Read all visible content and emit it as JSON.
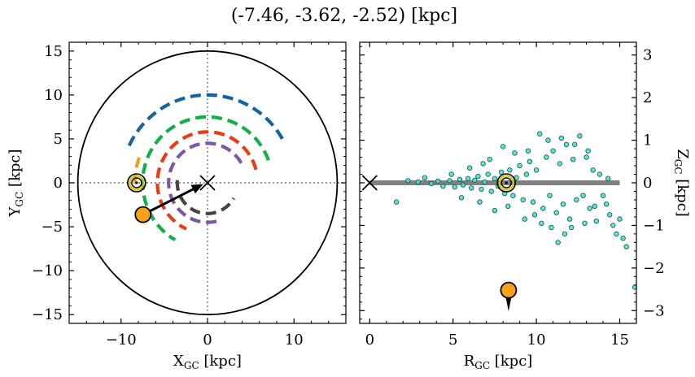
{
  "figure": {
    "title": "(-7.46, -3.62, -2.52) [kpc]"
  },
  "chart_data": [
    {
      "type": "line",
      "panel": "left",
      "xlabel_main": "X",
      "xlabel_sub": "GC",
      "xlabel_unit": " [kpc]",
      "ylabel_main": "Y",
      "ylabel_sub": "GC",
      "ylabel_unit": " [kpc]",
      "xlim": [
        -16,
        16
      ],
      "ylim": [
        -16,
        16
      ],
      "xticks": [
        -10,
        0,
        10
      ],
      "xtick_labels": [
        "−10",
        "0",
        "10"
      ],
      "yticks": [
        -15,
        -10,
        -5,
        0,
        5,
        10,
        15
      ],
      "ytick_labels": [
        "−15",
        "−10",
        "−5",
        "0",
        "5",
        "10",
        "15"
      ],
      "boundary_circle_radius": 15,
      "galactic_center": [
        0,
        0
      ],
      "sun_position": [
        -8.2,
        0
      ],
      "object_position": [
        -7.46,
        -3.62
      ],
      "spiral_arms": [
        {
          "color": "#1464a0",
          "radius": 10,
          "theta_start_deg": 30,
          "theta_end_deg": 155
        },
        {
          "color": "#10b047",
          "radius": 7.5,
          "theta_start_deg": 20,
          "theta_end_deg": 240
        },
        {
          "color": "#f0a020",
          "radius": 8.4,
          "theta_start_deg": 160,
          "theta_end_deg": 183
        },
        {
          "color": "#ee3a10",
          "radius": 5.8,
          "theta_start_deg": 15,
          "theta_end_deg": 245
        },
        {
          "color": "#7e57a4",
          "radius": 4.5,
          "theta_start_deg": 30,
          "theta_end_deg": 285
        },
        {
          "color": "#454545",
          "radius": 3.5,
          "theta_start_deg": 175,
          "theta_end_deg": 330
        }
      ]
    },
    {
      "type": "scatter",
      "panel": "right",
      "xlabel_main": "R",
      "xlabel_sub": "GC",
      "xlabel_unit": " [kpc]",
      "ylabel_main": "Z",
      "ylabel_sub": "GC",
      "ylabel_unit": " [kpc]",
      "xlim": [
        -0.6,
        16
      ],
      "ylim": [
        -3.3,
        3.3
      ],
      "xticks": [
        0,
        5,
        10,
        15
      ],
      "xtick_labels": [
        "0",
        "5",
        "10",
        "15"
      ],
      "yticks": [
        -3,
        -2,
        -1,
        0,
        1,
        2,
        3
      ],
      "ytick_labels": [
        "−3",
        "−2",
        "−1",
        "0",
        "1",
        "2",
        "3"
      ],
      "disk_plane": {
        "x_range": [
          0,
          15
        ],
        "z": 0
      },
      "galactic_center": [
        0,
        0
      ],
      "sun_position": [
        8.2,
        0
      ],
      "object_position": [
        8.33,
        -2.52
      ],
      "scatter_points": [
        [
          1.6,
          -0.45
        ],
        [
          2.3,
          0.05
        ],
        [
          2.9,
          0.02
        ],
        [
          3.3,
          0.12
        ],
        [
          3.7,
          -0.02
        ],
        [
          4.1,
          0.04
        ],
        [
          4.4,
          -0.08
        ],
        [
          4.8,
          0.05
        ],
        [
          5.1,
          -0.1
        ],
        [
          5.4,
          0.08
        ],
        [
          5.6,
          -0.05
        ],
        [
          5.9,
          0.1
        ],
        [
          6.1,
          -0.12
        ],
        [
          6.3,
          0.06
        ],
        [
          6.5,
          0.15
        ],
        [
          6.7,
          -0.15
        ],
        [
          6.9,
          0.02
        ],
        [
          7.1,
          0.2
        ],
        [
          7.3,
          -0.2
        ],
        [
          7.5,
          0.1
        ],
        [
          7.7,
          -0.08
        ],
        [
          7.9,
          0.25
        ],
        [
          8.1,
          -0.25
        ],
        [
          8.4,
          0.3
        ],
        [
          8.6,
          -0.3
        ],
        [
          8.8,
          0.12
        ],
        [
          9.0,
          0.4
        ],
        [
          9.2,
          -0.4
        ],
        [
          9.4,
          0.2
        ],
        [
          9.6,
          0.5
        ],
        [
          9.8,
          -0.45
        ],
        [
          10.0,
          0.3
        ],
        [
          10.2,
          1.15
        ],
        [
          10.4,
          -0.6
        ],
        [
          10.6,
          0.6
        ],
        [
          10.8,
          -0.3
        ],
        [
          11.0,
          0.75
        ],
        [
          11.2,
          -0.7
        ],
        [
          11.4,
          0.45
        ],
        [
          11.6,
          -0.5
        ],
        [
          11.8,
          0.9
        ],
        [
          12.0,
          -0.85
        ],
        [
          12.2,
          0.55
        ],
        [
          12.4,
          -0.4
        ],
        [
          12.6,
          1.1
        ],
        [
          12.8,
          -0.3
        ],
        [
          13.0,
          0.6
        ],
        [
          13.2,
          -0.6
        ],
        [
          13.4,
          0.3
        ],
        [
          13.6,
          -0.9
        ],
        [
          13.8,
          0.2
        ],
        [
          14.0,
          -0.3
        ],
        [
          14.2,
          -0.5
        ],
        [
          14.4,
          -0.75
        ],
        [
          14.6,
          -1.0
        ],
        [
          14.8,
          -1.2
        ],
        [
          15.0,
          -0.85
        ],
        [
          15.2,
          -1.3
        ],
        [
          15.4,
          -1.5
        ],
        [
          15.9,
          -2.45
        ],
        [
          8.0,
          0.85
        ],
        [
          8.7,
          0.7
        ],
        [
          9.5,
          0.75
        ],
        [
          10.7,
          1.0
        ],
        [
          11.5,
          1.05
        ],
        [
          12.3,
          0.9
        ],
        [
          9.9,
          -0.75
        ],
        [
          10.9,
          -1.05
        ],
        [
          11.3,
          -1.4
        ],
        [
          12.1,
          -1.05
        ],
        [
          7.5,
          -0.65
        ],
        [
          6.8,
          0.45
        ],
        [
          6.0,
          0.35
        ],
        [
          5.5,
          -0.35
        ],
        [
          4.9,
          0.2
        ],
        [
          13.1,
          0.75
        ],
        [
          13.5,
          -0.55
        ],
        [
          14.3,
          0.1
        ],
        [
          12.9,
          -0.95
        ],
        [
          11.7,
          -1.2
        ],
        [
          9.3,
          -0.85
        ],
        [
          8.3,
          -0.55
        ],
        [
          10.3,
          -0.95
        ],
        [
          7.2,
          0.55
        ],
        [
          6.6,
          -0.45
        ]
      ]
    }
  ]
}
